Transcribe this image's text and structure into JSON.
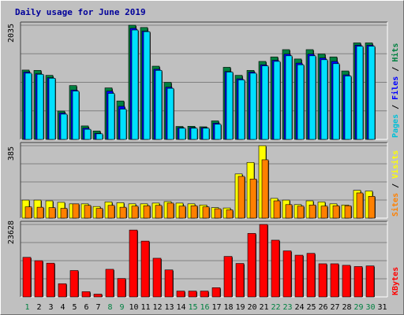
{
  "title": "Daily usage for June 2019",
  "colors": {
    "background": "#c0c0c0",
    "title": "#00009a",
    "pages": "#00e0ff",
    "pages_light": "#00c0d8",
    "files": "#0000ff",
    "hits": "#008040",
    "visits": "#ffff00",
    "sites": "#ff8000",
    "kbytes": "#ff0000",
    "weekend_day": "#008040",
    "weekday": "#000000"
  },
  "chart_data": [
    {
      "type": "bar",
      "categories": [
        "1",
        "2",
        "3",
        "4",
        "5",
        "6",
        "7",
        "8",
        "9",
        "10",
        "11",
        "12",
        "13",
        "14",
        "15",
        "16",
        "17",
        "18",
        "19",
        "20",
        "21",
        "22",
        "23",
        "24",
        "25",
        "26",
        "27",
        "28",
        "29",
        "30",
        "31"
      ],
      "weekend_days": [
        "1",
        "8",
        "9",
        "15",
        "16",
        "22",
        "23",
        "29",
        "30"
      ],
      "ylim": [
        0,
        2035
      ],
      "ytick_label": "2035",
      "ylabel_parts": [
        "Pages",
        "Files",
        "Hits"
      ],
      "ylabel_separator": " / ",
      "series": [
        {
          "name": "Hits",
          "values": [
            1236,
            1230,
            1142,
            505,
            960,
            240,
            150,
            918,
            685,
            2035,
            1995,
            1305,
            1017,
            231,
            234,
            225,
            330,
            1285,
            1142,
            1230,
            1390,
            1470,
            1600,
            1433,
            1600,
            1522,
            1470,
            1220,
            1720,
            1720,
            0
          ]
        },
        {
          "name": "Files",
          "values": [
            1200,
            1170,
            1100,
            470,
            880,
            200,
            110,
            860,
            590,
            1980,
            1930,
            1250,
            930,
            210,
            210,
            210,
            290,
            1210,
            1080,
            1200,
            1330,
            1410,
            1520,
            1360,
            1520,
            1450,
            1390,
            1150,
            1680,
            1680,
            0
          ]
        },
        {
          "name": "Pages",
          "values": [
            1180,
            1160,
            1090,
            450,
            860,
            180,
            100,
            820,
            540,
            1950,
            1920,
            1230,
            910,
            200,
            200,
            200,
            270,
            1200,
            1060,
            1180,
            1310,
            1390,
            1490,
            1330,
            1490,
            1420,
            1350,
            1130,
            1660,
            1660,
            0
          ]
        }
      ]
    },
    {
      "type": "bar",
      "categories": [
        "1",
        "2",
        "3",
        "4",
        "5",
        "6",
        "7",
        "8",
        "9",
        "10",
        "11",
        "12",
        "13",
        "14",
        "15",
        "16",
        "17",
        "18",
        "19",
        "20",
        "21",
        "22",
        "23",
        "24",
        "25",
        "26",
        "27",
        "28",
        "29",
        "30",
        "31"
      ],
      "ylim": [
        0,
        385
      ],
      "ytick_label": "385",
      "ylabel_parts": [
        "Sites",
        "Visits"
      ],
      "ylabel_separator": " / ",
      "series": [
        {
          "name": "Visits",
          "values": [
            96,
            96,
            92,
            84,
            76,
            76,
            62,
            86,
            82,
            76,
            76,
            80,
            88,
            80,
            76,
            70,
            56,
            54,
            235,
            296,
            385,
            105,
            96,
            72,
            92,
            86,
            76,
            70,
            148,
            144,
            0
          ]
        },
        {
          "name": "Sites",
          "values": [
            60,
            58,
            56,
            52,
            76,
            68,
            52,
            68,
            58,
            64,
            66,
            68,
            80,
            64,
            66,
            60,
            50,
            44,
            222,
            208,
            310,
            92,
            72,
            64,
            70,
            64,
            66,
            66,
            134,
            116,
            0
          ]
        }
      ]
    },
    {
      "type": "bar",
      "categories": [
        "1",
        "2",
        "3",
        "4",
        "5",
        "6",
        "7",
        "8",
        "9",
        "10",
        "11",
        "12",
        "13",
        "14",
        "15",
        "16",
        "17",
        "18",
        "19",
        "20",
        "21",
        "22",
        "23",
        "24",
        "25",
        "26",
        "27",
        "28",
        "29",
        "30",
        "31"
      ],
      "ylim": [
        0,
        23628
      ],
      "ytick_label": "23628",
      "ylabel": "KBytes",
      "series": [
        {
          "name": "KBytes",
          "values": [
            12900,
            11800,
            11000,
            4300,
            8600,
            1700,
            900,
            9000,
            6000,
            21800,
            18200,
            12600,
            8800,
            1900,
            1900,
            1900,
            3000,
            13200,
            10900,
            20700,
            23628,
            18500,
            15000,
            13600,
            14200,
            10800,
            10800,
            10300,
            9900,
            10100,
            0
          ]
        }
      ]
    }
  ]
}
